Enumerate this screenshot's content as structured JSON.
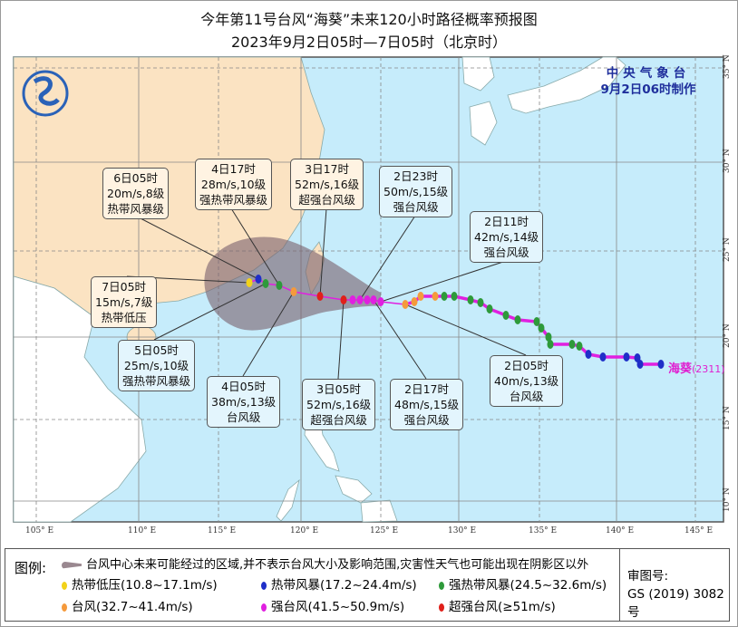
{
  "header": {
    "title": "今年第11号台风“海葵”未来120小时路径概率预报图",
    "subtitle": "2023年9月2日05时—7日05时（北京时）"
  },
  "agency": {
    "name": "中央气象台",
    "made": "9月2日06时制作"
  },
  "typhoon": {
    "name": "海葵",
    "code": "(2311)"
  },
  "axes": {
    "lon_labels": [
      "105° E",
      "110° E",
      "115° E",
      "120° E",
      "125° E",
      "130° E",
      "135° E",
      "140° E",
      "145° E"
    ],
    "lat_labels": [
      "35° N",
      "30° N",
      "25° N",
      "20° N",
      "15° N",
      "10° N"
    ]
  },
  "callouts": [
    {
      "time": "6日05时",
      "wind": "20m/s,8级",
      "level": "热带风暴级"
    },
    {
      "time": "4日17时",
      "wind": "28m/s,10级",
      "level": "强热带风暴级"
    },
    {
      "time": "3日17时",
      "wind": "52m/s,16级",
      "level": "超强台风级"
    },
    {
      "time": "2日23时",
      "wind": "50m/s,15级",
      "level": "强台风级"
    },
    {
      "time": "2日11时",
      "wind": "42m/s,14级",
      "level": "强台风级"
    },
    {
      "time": "7日05时",
      "wind": "15m/s,7级",
      "level": "热带低压"
    },
    {
      "time": "5日05时",
      "wind": "25m/s,10级",
      "level": "强热带风暴级"
    },
    {
      "time": "4日05时",
      "wind": "38m/s,13级",
      "level": "台风级"
    },
    {
      "time": "3日05时",
      "wind": "52m/s,16级",
      "level": "超强台风级"
    },
    {
      "time": "2日17时",
      "wind": "48m/s,15级",
      "level": "强台风级"
    },
    {
      "time": "2日05时",
      "wind": "40m/s,13级",
      "level": "台风级"
    }
  ],
  "legend": {
    "label": "图例:",
    "cone_note": "台风中心未来可能经过的区域,并不表示台风大小及影响范围,灾害性天气也可能出现在阴影区以外",
    "items": [
      {
        "text": "热带低压(10.8~17.1m/s)",
        "color": "#f2d21a"
      },
      {
        "text": "热带风暴(17.2~24.4m/s)",
        "color": "#1f2fc8"
      },
      {
        "text": "强热带风暴(24.5~32.6m/s)",
        "color": "#2e9a3a"
      },
      {
        "text": "台风(32.7~41.4m/s)",
        "color": "#f59a3c"
      },
      {
        "text": "强台风(41.5~50.9m/s)",
        "color": "#e020e0"
      },
      {
        "text": "超强台风(≥51m/s)",
        "color": "#e0201a"
      }
    ],
    "review_label": "审图号:",
    "review_number": "GS (2019) 3082号"
  },
  "colors": {
    "land_china": "#fbe3c2",
    "land_other": "#ffffff",
    "ocean": "#c6ecfb",
    "cone": "#7d6470",
    "track": "#e020e0"
  }
}
